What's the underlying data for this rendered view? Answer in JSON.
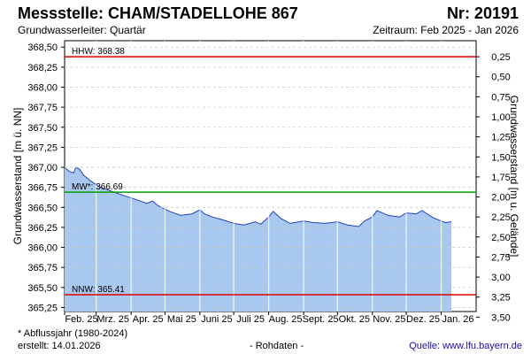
{
  "header": {
    "title": "Messstelle: CHAM/STADELLOHE 867",
    "number": "Nr: 20191",
    "aquifer": "Grundwasserleiter: Quartär",
    "period": "Zeitraum: Feb 2025 - Jan 2026"
  },
  "footer": {
    "note": "* Abflussjahr (1980-2024)",
    "created": "erstellt:  14.01.2026",
    "rawdata": "- Rohdaten -",
    "source": "Quelle:  www.lfu.bayern.de"
  },
  "colors": {
    "area_fill": "#a9c8f0",
    "line": "#2040c0",
    "hhw": "#e00000",
    "nnw": "#e00000",
    "mw": "#00a000",
    "grid": "#cccccc"
  },
  "chart_data": {
    "type": "area",
    "ylabel_left": "Grundwasserstand [m ü. NN]",
    "ylabel_right": "Grundwasserstand [m u. Gelände]",
    "ylim": [
      365.2,
      368.58
    ],
    "right_axis_offset": 368.63,
    "left_ticks": [
      "368,50",
      "368,25",
      "368,00",
      "367,75",
      "367,50",
      "367,25",
      "367,00",
      "366,75",
      "366,50",
      "366,25",
      "366,00",
      "365,75",
      "365,50",
      "365,25"
    ],
    "right_ticks": [
      "0,25",
      "0,50",
      "0,75",
      "1,00",
      "1,25",
      "1,50",
      "1,75",
      "2,00",
      "2,25",
      "2,50",
      "2,75",
      "3,00",
      "3,25",
      "3,50"
    ],
    "months": [
      "Feb. 25",
      "Mrz. 25",
      "Apr. 25",
      "Mai 25",
      "Juni 25",
      "Juli 25",
      "Aug. 25",
      "Sept. 25",
      "Okt. 25",
      "Nov. 25",
      "Dez. 25",
      "Jan. 26"
    ],
    "reference_lines": [
      {
        "label": "HHW: 368.38",
        "value": 368.38,
        "color_key": "hhw"
      },
      {
        "label": "MW*: 366.69",
        "value": 366.69,
        "color_key": "mw"
      },
      {
        "label": "NNW: 365.41",
        "value": 365.41,
        "color_key": "nnw"
      }
    ],
    "series": [
      {
        "x": [
          "2025-02-01",
          "2025-02-05",
          "2025-02-09",
          "2025-02-11",
          "2025-02-14",
          "2025-02-18",
          "2025-02-25",
          "2025-03-05",
          "2025-03-15",
          "2025-03-25",
          "2025-04-05",
          "2025-04-15",
          "2025-04-20",
          "2025-04-25",
          "2025-05-05",
          "2025-05-15",
          "2025-05-25",
          "2025-06-01",
          "2025-06-05",
          "2025-06-12",
          "2025-06-20",
          "2025-07-01",
          "2025-07-10",
          "2025-07-20",
          "2025-07-25",
          "2025-08-01",
          "2025-08-05",
          "2025-08-12",
          "2025-08-20",
          "2025-09-01",
          "2025-09-10",
          "2025-09-20",
          "2025-10-01",
          "2025-10-10",
          "2025-10-20",
          "2025-10-25",
          "2025-11-01",
          "2025-11-05",
          "2025-11-15",
          "2025-11-25",
          "2025-12-01",
          "2025-12-10",
          "2025-12-15",
          "2025-12-25",
          "2026-01-01",
          "2026-01-05",
          "2026-01-10"
        ],
        "y": [
          367.0,
          366.95,
          366.93,
          367.0,
          366.98,
          366.9,
          366.82,
          366.75,
          366.7,
          366.65,
          366.6,
          366.55,
          366.58,
          366.52,
          366.45,
          366.4,
          366.42,
          366.47,
          366.42,
          366.38,
          366.35,
          366.3,
          366.28,
          366.32,
          366.29,
          366.38,
          366.45,
          366.36,
          366.3,
          366.33,
          366.31,
          366.3,
          366.32,
          366.28,
          366.26,
          366.33,
          366.38,
          366.46,
          366.4,
          366.38,
          366.43,
          366.42,
          366.46,
          366.37,
          366.33,
          366.31,
          366.32
        ]
      }
    ]
  }
}
